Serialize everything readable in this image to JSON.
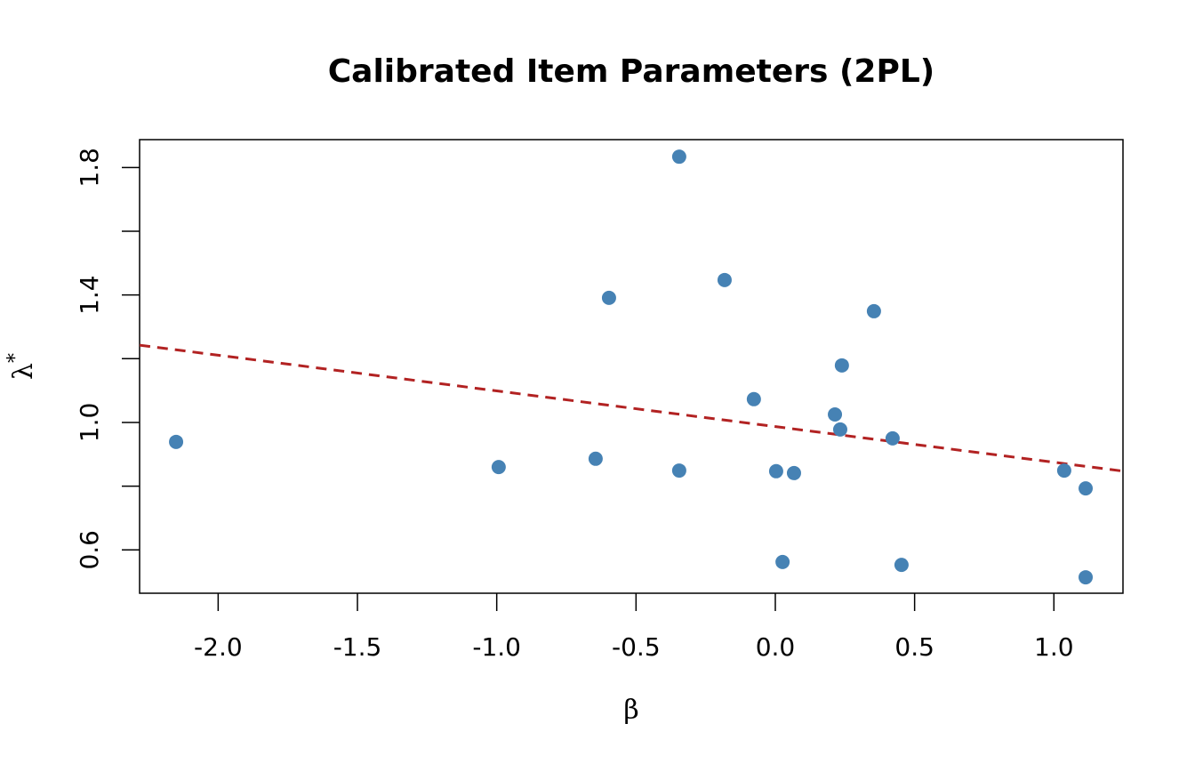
{
  "chart_data": {
    "type": "scatter",
    "title": "Calibrated Item Parameters (2PL)",
    "xlabel": "β",
    "ylabel": "λ",
    "ylabel_superscript": "*",
    "x": [
      -2.151,
      -0.993,
      -0.645,
      -0.597,
      -0.345,
      -0.345,
      -0.182,
      -0.077,
      0.003,
      0.026,
      0.067,
      0.214,
      0.233,
      0.239,
      0.354,
      0.421,
      0.453,
      1.037,
      1.114,
      1.114
    ],
    "values": [
      0.939,
      0.86,
      0.886,
      1.391,
      1.834,
      0.849,
      1.447,
      1.073,
      0.847,
      0.562,
      0.841,
      1.025,
      0.978,
      1.179,
      1.349,
      0.95,
      0.553,
      0.849,
      0.793,
      0.514
    ],
    "color": "#4682b4",
    "fit": {
      "intercept": 0.987,
      "slope": -0.112,
      "color": "#b22222",
      "dashed": true
    },
    "xlim": [
      -2.282,
      1.248
    ],
    "ylim": [
      0.464,
      1.8875
    ],
    "xticks": [
      {
        "value": -2,
        "label": "-2.0"
      },
      -1.5,
      {
        "value": -1,
        "label": "-1.0"
      },
      -0.5,
      {
        "value": 0,
        "label": "0.0"
      },
      0.5,
      {
        "value": 1,
        "label": "1.0"
      }
    ],
    "yticks": [
      0.6,
      {
        "value": 1,
        "label": "1.0"
      },
      1.4,
      1.8
    ],
    "minor_yticks": [
      0.8,
      1.2,
      1.6
    ],
    "grid": false
  }
}
